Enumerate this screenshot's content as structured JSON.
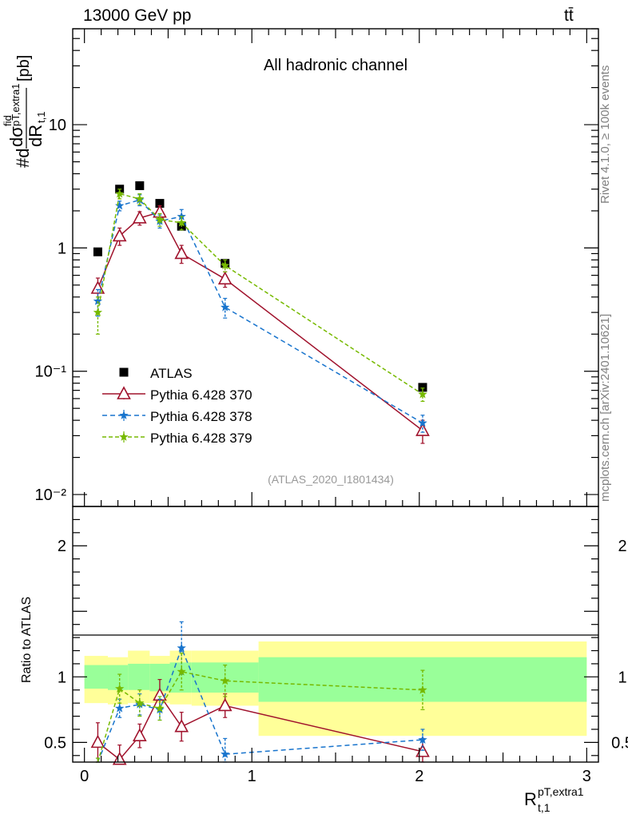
{
  "header": {
    "energy_label": "13000 GeV pp",
    "process_label": "tt̄"
  },
  "side_labels": {
    "rivet": "Rivet 4.1.0, ≥ 100k events",
    "source": "mcplots.cern.ch [arXiv:2401.10621]"
  },
  "chart_data": [
    {
      "type": "line",
      "title": "All hadronic channel",
      "analysis_tag": "(ATLAS_2020_I1801434)",
      "xlabel": "R t,1 pT,extra1",
      "ylabel": "#d dσ fid / dR t,1 pT,extra1 [pb]",
      "yscale": "log",
      "xlim": [
        -0.07,
        3.07
      ],
      "ylim": [
        0.008,
        60
      ],
      "y_ticks": [
        {
          "value": 10,
          "label": "10"
        },
        {
          "value": 1,
          "label": "1"
        },
        {
          "value": 0.1,
          "label": "10⁻¹"
        },
        {
          "value": 0.01,
          "label": "10⁻²"
        }
      ],
      "legend": [
        "ATLAS",
        "Pythia 6.428 370",
        "Pythia 6.428 378",
        "Pythia 6.428 379"
      ],
      "legend_position": "bottom-left",
      "series": [
        {
          "name": "ATLAS",
          "color": "#000000",
          "marker": "square",
          "x": [
            0.08,
            0.21,
            0.33,
            0.45,
            0.58,
            0.84,
            2.02
          ],
          "y": [
            0.93,
            3.0,
            3.2,
            2.3,
            1.5,
            0.75,
            0.074
          ],
          "err": [
            0.04,
            0.1,
            0.1,
            0.08,
            0.06,
            0.04,
            0.005
          ]
        },
        {
          "name": "Pythia 6.428 370",
          "color": "#a0122c",
          "marker": "triangle",
          "dash": "",
          "x": [
            0.08,
            0.21,
            0.33,
            0.45,
            0.58,
            0.84,
            2.02
          ],
          "y": [
            0.47,
            1.25,
            1.75,
            1.95,
            0.9,
            0.56,
            0.033
          ],
          "err": [
            0.1,
            0.2,
            0.22,
            0.25,
            0.15,
            0.08,
            0.007
          ]
        },
        {
          "name": "Pythia 6.428 378",
          "color": "#1874cd",
          "marker": "star",
          "dash": "6,4",
          "x": [
            0.08,
            0.21,
            0.33,
            0.45,
            0.58,
            0.84,
            2.02
          ],
          "y": [
            0.37,
            2.2,
            2.45,
            1.65,
            1.8,
            0.33,
            0.038
          ],
          "err": [
            0.09,
            0.2,
            0.25,
            0.2,
            0.25,
            0.06,
            0.006
          ]
        },
        {
          "name": "Pythia 6.428 379",
          "color": "#76b900",
          "marker": "star",
          "dash": "5,3",
          "x": [
            0.08,
            0.21,
            0.33,
            0.45,
            0.58,
            0.84,
            2.02
          ],
          "y": [
            0.3,
            2.75,
            2.5,
            1.7,
            1.6,
            0.72,
            0.065
          ],
          "err": [
            0.1,
            0.25,
            0.25,
            0.2,
            0.2,
            0.08,
            0.008
          ]
        }
      ]
    },
    {
      "type": "line",
      "title": "",
      "xlabel": "R t,1 pT,extra1",
      "ylabel": "Ratio to ATLAS",
      "xlim": [
        -0.07,
        3.07
      ],
      "ylim": [
        0.35,
        2.3
      ],
      "y_ticks": [
        {
          "value": 2,
          "label": "2"
        },
        {
          "value": 1,
          "label": "1"
        },
        {
          "value": 0.5,
          "label": "0.5"
        }
      ],
      "x_ticks": [
        {
          "value": 0,
          "label": "0"
        },
        {
          "value": 1,
          "label": "1"
        },
        {
          "value": 2,
          "label": "2"
        },
        {
          "value": 3,
          "label": "3"
        }
      ],
      "uncertainty_bands": [
        {
          "x0": 0.0,
          "x1": 0.14,
          "yellow": [
            0.8,
            1.16
          ],
          "green": [
            0.91,
            1.09
          ]
        },
        {
          "x0": 0.14,
          "x1": 0.26,
          "yellow": [
            0.79,
            1.15
          ],
          "green": [
            0.9,
            1.09
          ]
        },
        {
          "x0": 0.26,
          "x1": 0.39,
          "yellow": [
            0.8,
            1.2
          ],
          "green": [
            0.9,
            1.1
          ]
        },
        {
          "x0": 0.39,
          "x1": 0.51,
          "yellow": [
            0.8,
            1.16
          ],
          "green": [
            0.89,
            1.1
          ]
        },
        {
          "x0": 0.51,
          "x1": 0.64,
          "yellow": [
            0.79,
            1.2
          ],
          "green": [
            0.88,
            1.11
          ]
        },
        {
          "x0": 0.64,
          "x1": 1.04,
          "yellow": [
            0.78,
            1.2
          ],
          "green": [
            0.88,
            1.11
          ]
        },
        {
          "x0": 1.04,
          "x1": 3.0,
          "yellow": [
            0.55,
            1.27
          ],
          "green": [
            0.81,
            1.15
          ]
        }
      ],
      "series": [
        {
          "name": "Pythia 6.428 370",
          "color": "#a0122c",
          "marker": "triangle",
          "dash": "",
          "x": [
            0.08,
            0.21,
            0.33,
            0.45,
            0.58,
            0.84,
            2.02
          ],
          "y": [
            0.5,
            0.37,
            0.55,
            0.86,
            0.62,
            0.78,
            0.43
          ],
          "err": [
            0.15,
            0.11,
            0.09,
            0.12,
            0.11,
            0.09,
            0.1
          ]
        },
        {
          "name": "Pythia 6.428 378",
          "color": "#1874cd",
          "marker": "star",
          "dash": "6,4",
          "x": [
            0.08,
            0.21,
            0.33,
            0.45,
            0.58,
            0.84,
            2.02
          ],
          "y": [
            0.28,
            0.76,
            0.79,
            0.75,
            1.22,
            0.41,
            0.52
          ],
          "err": [
            0.1,
            0.07,
            0.08,
            0.08,
            0.2,
            0.12,
            0.08
          ]
        },
        {
          "name": "Pythia 6.428 379",
          "color": "#76b900",
          "marker": "star",
          "dash": "5,3",
          "x": [
            0.08,
            0.21,
            0.33,
            0.45,
            0.58,
            0.84,
            2.02
          ],
          "y": [
            0.28,
            0.91,
            0.8,
            0.76,
            1.04,
            0.97,
            0.9
          ],
          "err": [
            0.1,
            0.11,
            0.1,
            0.09,
            0.14,
            0.12,
            0.15
          ]
        }
      ]
    }
  ]
}
